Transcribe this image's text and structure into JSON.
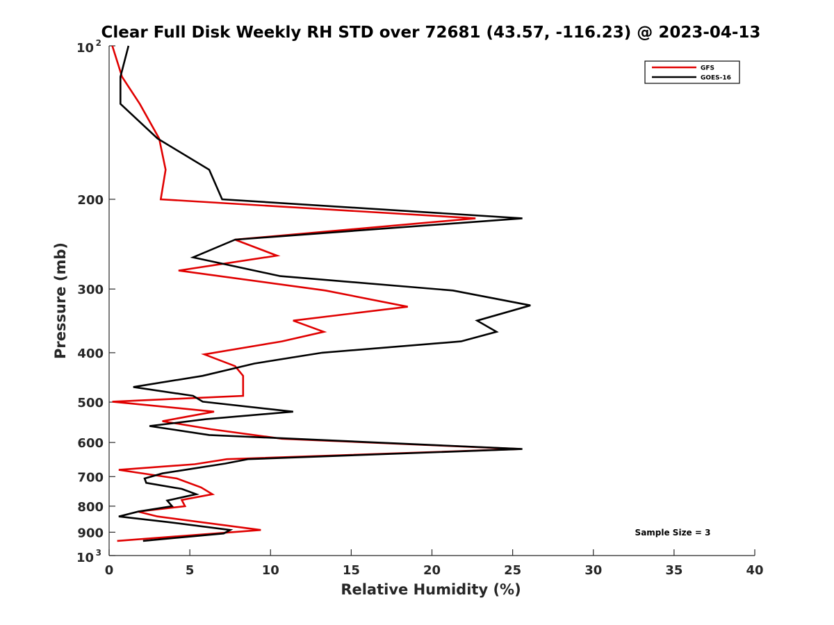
{
  "chart_data": {
    "type": "line",
    "title": "Clear Full Disk Weekly RH STD over 72681 (43.57, -116.23) @ 2023-04-13",
    "xlabel": "Relative Humidity (%)",
    "ylabel": "Pressure (mb)",
    "xlim": [
      0,
      40
    ],
    "ylim": [
      100,
      1000
    ],
    "y_scale": "log",
    "y_reversed": true,
    "x_ticks": [
      "0",
      "5",
      "10",
      "15",
      "20",
      "25",
      "30",
      "35",
      "40"
    ],
    "y_ticks": [
      {
        "value": 100,
        "base": "10",
        "exp": "2"
      },
      {
        "value": 200,
        "label": "200"
      },
      {
        "value": 300,
        "label": "300"
      },
      {
        "value": 400,
        "label": "400"
      },
      {
        "value": 500,
        "label": "500"
      },
      {
        "value": 600,
        "label": "600"
      },
      {
        "value": 700,
        "label": "700"
      },
      {
        "value": 800,
        "label": "800"
      },
      {
        "value": 900,
        "label": "900"
      },
      {
        "value": 1000,
        "base": "10",
        "exp": "3"
      }
    ],
    "legend_position": "top-right",
    "grid": false,
    "series": [
      {
        "name": "GFS",
        "color": "#e00000",
        "points": [
          [
            0.2,
            100
          ],
          [
            0.8,
            115
          ],
          [
            1.9,
            130
          ],
          [
            3.1,
            152
          ],
          [
            3.5,
            175
          ],
          [
            3.2,
            200
          ],
          [
            22.7,
            218
          ],
          [
            7.8,
            240
          ],
          [
            10.4,
            258
          ],
          [
            4.3,
            276
          ],
          [
            13.4,
            302
          ],
          [
            18.5,
            325
          ],
          [
            11.4,
            346
          ],
          [
            13.3,
            364
          ],
          [
            10.7,
            380
          ],
          [
            5.9,
            403
          ],
          [
            7.8,
            425
          ],
          [
            8.3,
            444
          ],
          [
            8.3,
            467
          ],
          [
            8.3,
            486
          ],
          [
            0.2,
            499
          ],
          [
            6.5,
            522
          ],
          [
            3.3,
            545
          ],
          [
            6.3,
            565
          ],
          [
            10.7,
            590
          ],
          [
            25.5,
            618
          ],
          [
            7.3,
            647
          ],
          [
            5.3,
            662
          ],
          [
            0.6,
            679
          ],
          [
            4.2,
            706
          ],
          [
            5.7,
            735
          ],
          [
            6.4,
            758
          ],
          [
            4.5,
            778
          ],
          [
            4.7,
            800
          ],
          [
            1.8,
            820
          ],
          [
            3.0,
            838
          ],
          [
            9.4,
            891
          ],
          [
            0.5,
            936
          ]
        ]
      },
      {
        "name": "GOES-16",
        "color": "#000000",
        "points": [
          [
            1.2,
            100
          ],
          [
            0.7,
            115
          ],
          [
            0.7,
            130
          ],
          [
            3.0,
            152
          ],
          [
            6.2,
            175
          ],
          [
            7.0,
            200
          ],
          [
            25.6,
            218
          ],
          [
            7.8,
            240
          ],
          [
            5.2,
            260
          ],
          [
            10.6,
            283
          ],
          [
            21.3,
            302
          ],
          [
            26.1,
            323
          ],
          [
            22.8,
            346
          ],
          [
            24.0,
            364
          ],
          [
            21.8,
            380
          ],
          [
            13.2,
            400
          ],
          [
            9.0,
            420
          ],
          [
            5.8,
            444
          ],
          [
            1.5,
            467
          ],
          [
            5.2,
            486
          ],
          [
            5.8,
            499
          ],
          [
            11.4,
            522
          ],
          [
            6.0,
            540
          ],
          [
            2.5,
            557
          ],
          [
            6.2,
            580
          ],
          [
            25.6,
            618
          ],
          [
            8.6,
            647
          ],
          [
            7.2,
            660
          ],
          [
            3.3,
            690
          ],
          [
            2.2,
            706
          ],
          [
            2.3,
            720
          ],
          [
            4.5,
            740
          ],
          [
            5.4,
            758
          ],
          [
            3.6,
            780
          ],
          [
            3.9,
            800
          ],
          [
            1.8,
            820
          ],
          [
            0.6,
            838
          ],
          [
            3.7,
            860
          ],
          [
            7.5,
            891
          ],
          [
            7.1,
            905
          ],
          [
            2.1,
            936
          ]
        ]
      }
    ],
    "annotations": [
      "Sample Size = 3"
    ]
  }
}
